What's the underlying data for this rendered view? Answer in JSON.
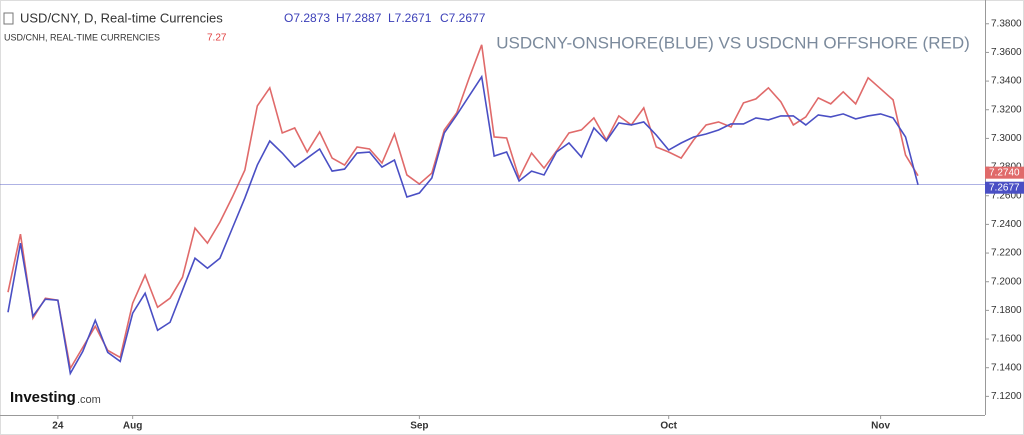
{
  "chart_data": {
    "type": "line",
    "title": "USDCNY-ONSHORE(BLUE) VS USDCNH OFFSHORE (RED)",
    "ohlc": [
      "O7.2873",
      "H7.2887",
      "L7.2671",
      "C7.2677"
    ],
    "logo": [
      "Investing",
      ".com"
    ],
    "categories": [
      null,
      null,
      null,
      null,
      "24",
      null,
      null,
      null,
      null,
      null,
      "Aug",
      null,
      null,
      null,
      null,
      null,
      null,
      null,
      null,
      null,
      null,
      null,
      null,
      null,
      null,
      null,
      null,
      null,
      null,
      null,
      null,
      null,
      null,
      "Sep",
      null,
      null,
      null,
      null,
      null,
      null,
      null,
      null,
      null,
      null,
      null,
      null,
      null,
      null,
      null,
      null,
      null,
      null,
      null,
      "Oct",
      null,
      null,
      null,
      null,
      null,
      null,
      null,
      null,
      null,
      null,
      null,
      null,
      null,
      null,
      null,
      null,
      "Nov",
      null,
      null,
      null
    ],
    "series": [
      {
        "name": "USD/CNY, D, Real-time Currencies",
        "color": "#4a4fc4",
        "last_label": "7.2677",
        "values": [
          7.1787,
          7.2269,
          7.1759,
          7.1878,
          7.1871,
          7.136,
          7.1514,
          7.1731,
          7.1507,
          7.1444,
          7.178,
          7.192,
          7.1661,
          7.1717,
          7.1941,
          7.2164,
          7.2094,
          7.2164,
          7.2374,
          7.2584,
          7.2814,
          7.2982,
          7.2898,
          7.28,
          7.2863,
          7.2926,
          7.2772,
          7.2786,
          7.2898,
          7.2905,
          7.28,
          7.2849,
          7.2591,
          7.2619,
          7.2724,
          7.3038,
          7.3164,
          7.3297,
          7.343,
          7.2877,
          7.2905,
          7.2703,
          7.2772,
          7.2745,
          7.2905,
          7.2968,
          7.287,
          7.3073,
          7.2982,
          7.3108,
          7.3094,
          7.3115,
          7.3024,
          7.2919,
          7.2968,
          7.301,
          7.3031,
          7.3059,
          7.3101,
          7.3101,
          7.3143,
          7.3129,
          7.3157,
          7.3157,
          7.3094,
          7.3164,
          7.315,
          7.3171,
          7.3136,
          7.3157,
          7.3171,
          7.3143,
          7.301,
          7.2677
        ]
      },
      {
        "name": "USD/CNH, REAL-TIME CURRENCIES",
        "color": "#e06a6a",
        "last_short": "7.27",
        "last_label": "7.2740",
        "values": [
          7.1927,
          7.2332,
          7.1745,
          7.1885,
          7.1871,
          7.1395,
          7.1542,
          7.1689,
          7.1521,
          7.1472,
          7.185,
          7.2046,
          7.1822,
          7.1885,
          7.2032,
          7.2374,
          7.2269,
          7.2416,
          7.2591,
          7.2779,
          7.3227,
          7.3353,
          7.3038,
          7.3073,
          7.2905,
          7.3045,
          7.2863,
          7.2814,
          7.294,
          7.2926,
          7.2828,
          7.3031,
          7.2745,
          7.2682,
          7.2758,
          7.3059,
          7.3178,
          7.3423,
          7.3653,
          7.301,
          7.3003,
          7.2724,
          7.2898,
          7.2793,
          7.2912,
          7.3038,
          7.3059,
          7.3143,
          7.2989,
          7.3157,
          7.3094,
          7.3213,
          7.294,
          7.2905,
          7.2863,
          7.2989,
          7.3094,
          7.3115,
          7.308,
          7.3248,
          7.3276,
          7.3353,
          7.3255,
          7.3094,
          7.315,
          7.3283,
          7.3241,
          7.3325,
          7.3241,
          7.3423,
          7.3346,
          7.3269,
          7.2884,
          7.274
        ]
      }
    ],
    "ylim": [
      7.107,
      7.391
    ],
    "yticks": [
      {
        "value": 7.12,
        "label": "7.1200"
      },
      {
        "value": 7.14,
        "label": "7.1400"
      },
      {
        "value": 7.16,
        "label": "7.1600"
      },
      {
        "value": 7.18,
        "label": "7.1800"
      },
      {
        "value": 7.2,
        "label": "7.2000"
      },
      {
        "value": 7.22,
        "label": "7.2200"
      },
      {
        "value": 7.24,
        "label": "7.2400"
      },
      {
        "value": 7.26,
        "label": "7.2600"
      },
      {
        "value": 7.28,
        "label": "7.2800"
      },
      {
        "value": 7.3,
        "label": "7.3000"
      },
      {
        "value": 7.32,
        "label": "7.3200"
      },
      {
        "value": 7.34,
        "label": "7.3400"
      },
      {
        "value": 7.36,
        "label": "7.3600"
      },
      {
        "value": 7.38,
        "label": "7.3800"
      }
    ],
    "grid": false
  }
}
